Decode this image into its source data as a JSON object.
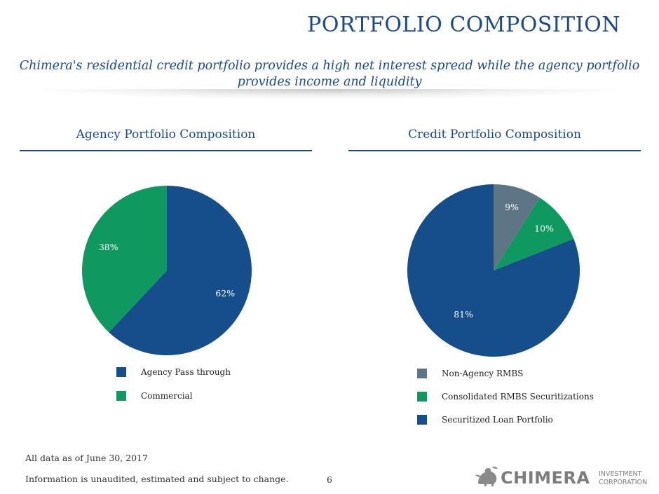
{
  "header": {
    "title": "PORTFOLIO COMPOSITION",
    "subtitle_line1": "Chimera's residential credit portfolio provides a high net interest spread while the agency portfolio",
    "subtitle_line2": "provides income and liquidity"
  },
  "colors": {
    "title_blue": "#1b4a8a",
    "pie_blue": "#164e8c",
    "pie_green": "#0f9960",
    "pie_gray": "#5d7584"
  },
  "panels": {
    "agency": {
      "heading": "Agency Portfolio Composition"
    },
    "credit": {
      "heading": "Credit Portfolio Composition"
    }
  },
  "chart_data": [
    {
      "type": "pie",
      "title": "Agency Portfolio Composition",
      "categories": [
        "Agency Pass through",
        "Commercial"
      ],
      "values": [
        62,
        38
      ],
      "labels": [
        "62%",
        "38%"
      ],
      "colors": [
        "#164e8c",
        "#0f9960"
      ],
      "legend_position": "bottom"
    },
    {
      "type": "pie",
      "title": "Credit Portfolio Composition",
      "categories": [
        "Non-Agency RMBS",
        "Consolidated RMBS Securitizations",
        "Securitized Loan Portfolio"
      ],
      "values": [
        9,
        10,
        81
      ],
      "labels": [
        "9%",
        "10%",
        "81%"
      ],
      "colors": [
        "#5d7584",
        "#0f9960",
        "#164e8c"
      ],
      "legend_position": "bottom"
    }
  ],
  "footer": {
    "date_note": "All data as of June 30, 2017",
    "disclaimer": "Information is unaudited, estimated and subject to change.",
    "page_number": "6",
    "logo_word": "CHIMERA",
    "logo_sub1": "INVESTMENT",
    "logo_sub2": "CORPORATION"
  }
}
